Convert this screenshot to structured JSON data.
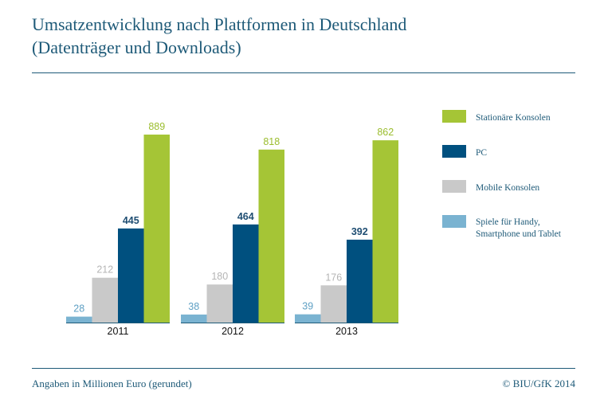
{
  "header": {
    "title_line1": "Umsatzentwicklung nach Plattformen in Deutschland",
    "title_line2": "(Datenträger und Downloads)"
  },
  "chart_data": {
    "type": "bar",
    "title": "Umsatzentwicklung nach Plattformen in Deutschland (Datenträger und Downloads)",
    "categories": [
      "2011",
      "2012",
      "2013"
    ],
    "series": [
      {
        "name": "Spiele für Handy, Smartphone und Tablet",
        "color": "#7ab3d1",
        "label_color": "#5fa0c4",
        "values": [
          28,
          38,
          39
        ]
      },
      {
        "name": "Mobile Konsolen",
        "color": "#c9c9c9",
        "label_color": "#b5b5b5",
        "values": [
          212,
          180,
          176
        ]
      },
      {
        "name": "PC",
        "color": "#00507f",
        "label_color": "#1e4d72",
        "values": [
          445,
          464,
          392
        ]
      },
      {
        "name": "Stationäre Konsolen",
        "color": "#a5c536",
        "label_color": "#9bbd2e",
        "values": [
          889,
          818,
          862
        ]
      }
    ],
    "ylim": [
      0,
      1000
    ],
    "xlabel": "",
    "ylabel": "",
    "grid": false,
    "legend_position": "right"
  },
  "legend": {
    "items": [
      {
        "label": "Stationäre Konsolen",
        "color": "#a5c536"
      },
      {
        "label": "PC",
        "color": "#00507f"
      },
      {
        "label": "Mobile Konsolen",
        "color": "#c9c9c9"
      },
      {
        "label": "Spiele für Handy,\nSmartphone und Tablet",
        "color": "#7ab3d1"
      }
    ]
  },
  "footer": {
    "note": "Angaben in Millionen Euro (gerundet)",
    "source": "© BIU/GfK 2014"
  }
}
